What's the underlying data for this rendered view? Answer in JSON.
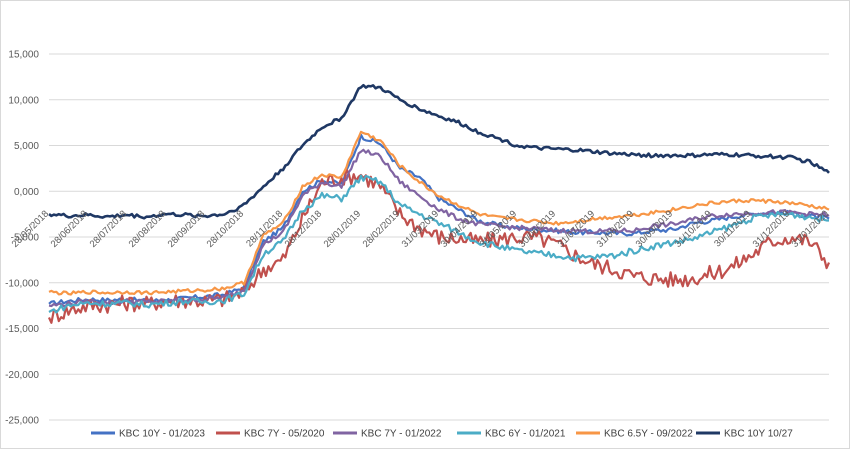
{
  "chart_data": {
    "type": "line",
    "title": "",
    "xlabel": "",
    "ylabel": "",
    "ylim": [
      -25,
      15
    ],
    "y_ticks": [
      15,
      10,
      5,
      0,
      -5,
      -10,
      -15,
      -20,
      -25
    ],
    "y_tick_labels": [
      "15,000",
      "10,000",
      "5,000",
      "0,000",
      "-5,000",
      "-10,000",
      "-15,000",
      "-20,000",
      "-25,000"
    ],
    "x_tick_labels": [
      "28/05/2018",
      "28/06/2018",
      "28/07/2018",
      "28/08/2018",
      "28/09/2018",
      "28/10/2018",
      "28/11/2018",
      "28/12/2018",
      "28/01/2019",
      "28/02/2019",
      "31/03/2019",
      "30/04/2019",
      "31/05/2019",
      "30/06/2019",
      "31/07/2019",
      "31/08/2019",
      "30/09/2019",
      "31/10/2019",
      "30/11/2019",
      "31/12/2019",
      "31/01/2020"
    ],
    "x_tick_positions": [
      0,
      1,
      2,
      3,
      4,
      5,
      6,
      7,
      8,
      9,
      10,
      11,
      12,
      13,
      14,
      15,
      16,
      17,
      18,
      19,
      20
    ],
    "x_range": [
      0,
      20
    ],
    "grid": "horizontal",
    "legend_position": "bottom",
    "series": [
      {
        "name": "KBC 10Y - 01/2023",
        "color": "#4472C4",
        "x": [
          0,
          0.5,
          1,
          1.5,
          2,
          2.5,
          3,
          3.5,
          4,
          4.5,
          5,
          5.5,
          6,
          6.5,
          7,
          7.5,
          8,
          8.5,
          9,
          9.5,
          10,
          10.5,
          11,
          11.5,
          12,
          12.5,
          13,
          13.5,
          14,
          14.5,
          15,
          15.5,
          16,
          16.5,
          17,
          17.5,
          18,
          18.5,
          19,
          19.5,
          20
        ],
        "values": [
          -12.3,
          -12.0,
          -11.8,
          -11.9,
          -11.8,
          -12.0,
          -11.9,
          -11.7,
          -11.5,
          -11.3,
          -10.5,
          -5.5,
          -4.0,
          0.0,
          1.2,
          0.8,
          6.0,
          5.2,
          2.5,
          1.5,
          -0.8,
          -2.0,
          -3.2,
          -3.7,
          -4.0,
          -4.2,
          -4.3,
          -4.5,
          -4.5,
          -4.6,
          -4.6,
          -4.3,
          -4.2,
          -3.5,
          -3.2,
          -2.8,
          -2.5,
          -2.3,
          -2.4,
          -2.7,
          -3.0
        ]
      },
      {
        "name": "KBC 7Y - 05/2020",
        "color": "#C0504D",
        "x": [
          0,
          0.5,
          1,
          1.5,
          2,
          2.5,
          3,
          3.5,
          4,
          4.5,
          5,
          5.5,
          6,
          6.5,
          7,
          7.5,
          8,
          8.5,
          9,
          9.5,
          10,
          10.5,
          11,
          11.5,
          12,
          12.5,
          13,
          13.5,
          14,
          14.5,
          15,
          15.5,
          16,
          16.5,
          17,
          17.5,
          18,
          18.5,
          19,
          19.5,
          20
        ],
        "values": [
          -13.8,
          -13.0,
          -12.5,
          -12.4,
          -12.2,
          -12.3,
          -12.0,
          -11.9,
          -12.0,
          -11.8,
          -11.0,
          -8.5,
          -7.5,
          -3.0,
          1.0,
          1.5,
          1.8,
          0.5,
          -2.5,
          -4.0,
          -5.0,
          -5.2,
          -5.5,
          -5.3,
          -5.0,
          -5.1,
          -5.8,
          -7.0,
          -8.0,
          -8.5,
          -9.3,
          -9.5,
          -9.7,
          -9.5,
          -9.0,
          -8.3,
          -7.0,
          -5.5,
          -5.0,
          -5.5,
          -7.8
        ]
      },
      {
        "name": "KBC 7Y - 01/2022",
        "color": "#8064A2",
        "x": [
          0,
          0.5,
          1,
          1.5,
          2,
          2.5,
          3,
          3.5,
          4,
          4.5,
          5,
          5.5,
          6,
          6.5,
          7,
          7.5,
          8,
          8.5,
          9,
          9.5,
          10,
          10.5,
          11,
          11.5,
          12,
          12.5,
          13,
          13.5,
          14,
          14.5,
          15,
          15.5,
          16,
          16.5,
          17,
          17.5,
          18,
          18.5,
          19,
          19.5,
          20
        ],
        "values": [
          -12.5,
          -12.3,
          -12.0,
          -12.2,
          -12.0,
          -12.1,
          -12.0,
          -11.9,
          -11.8,
          -11.6,
          -10.8,
          -5.8,
          -4.5,
          -0.5,
          1.0,
          0.5,
          4.5,
          3.8,
          1.0,
          -0.5,
          -2.0,
          -3.0,
          -3.6,
          -3.8,
          -4.0,
          -4.1,
          -4.3,
          -4.3,
          -4.4,
          -4.3,
          -4.3,
          -3.8,
          -3.6,
          -3.1,
          -2.7,
          -2.5,
          -2.4,
          -2.3,
          -2.3,
          -2.5,
          -2.6
        ]
      },
      {
        "name": "KBC 6Y - 01/2021",
        "color": "#4BACC6",
        "x": [
          0,
          0.5,
          1,
          1.5,
          2,
          2.5,
          3,
          3.5,
          4,
          4.5,
          5,
          5.5,
          6,
          6.5,
          7,
          7.5,
          8,
          8.5,
          9,
          9.5,
          10,
          10.5,
          11,
          11.5,
          12,
          12.5,
          13,
          13.5,
          14,
          14.5,
          15,
          15.5,
          16,
          16.5,
          17,
          17.5,
          18,
          18.5,
          19,
          19.5,
          20
        ],
        "values": [
          -13.2,
          -12.5,
          -12.2,
          -12.3,
          -12.2,
          -12.4,
          -12.2,
          -12.0,
          -12.1,
          -11.9,
          -11.2,
          -6.8,
          -5.5,
          -2.0,
          -0.5,
          -0.8,
          1.5,
          1.0,
          -1.5,
          -2.5,
          -3.5,
          -4.5,
          -5.5,
          -6.0,
          -6.5,
          -6.8,
          -7.0,
          -7.3,
          -7.2,
          -7.0,
          -6.5,
          -6.0,
          -5.6,
          -5.2,
          -4.5,
          -3.8,
          -3.0,
          -2.6,
          -2.5,
          -2.8,
          -3.2
        ]
      },
      {
        "name": "KBC 6.5Y - 09/2022",
        "color": "#F79646",
        "x": [
          0,
          0.5,
          1,
          1.5,
          2,
          2.5,
          3,
          3.5,
          4,
          4.5,
          5,
          5.5,
          6,
          6.5,
          7,
          7.5,
          8,
          8.5,
          9,
          9.5,
          10,
          10.5,
          11,
          11.5,
          12,
          12.5,
          13,
          13.5,
          14,
          14.5,
          15,
          15.5,
          16,
          16.5,
          17,
          17.5,
          18,
          18.5,
          19,
          19.5,
          20
        ],
        "values": [
          -11.0,
          -11.2,
          -11.0,
          -11.1,
          -11.0,
          -11.1,
          -11.0,
          -10.9,
          -10.8,
          -10.6,
          -10.0,
          -4.8,
          -3.5,
          0.5,
          1.8,
          1.5,
          6.5,
          5.5,
          2.8,
          1.0,
          -0.5,
          -1.5,
          -2.5,
          -2.9,
          -3.1,
          -3.3,
          -3.5,
          -3.3,
          -3.0,
          -2.8,
          -2.6,
          -2.3,
          -2.0,
          -1.6,
          -1.3,
          -1.1,
          -1.0,
          -1.1,
          -1.3,
          -1.6,
          -2.0
        ]
      },
      {
        "name": "KBC 10Y 10/27",
        "color": "#1F3864",
        "x": [
          0,
          0.5,
          1,
          1.5,
          2,
          2.5,
          3,
          3.5,
          4,
          4.5,
          5,
          5.5,
          6,
          6.5,
          7,
          7.5,
          8,
          8.5,
          9,
          9.5,
          10,
          10.5,
          11,
          11.5,
          12,
          12.5,
          13,
          13.5,
          14,
          14.5,
          15,
          15.5,
          16,
          16.5,
          17,
          17.5,
          18,
          18.5,
          19,
          19.5,
          20
        ],
        "values": [
          -2.5,
          -2.7,
          -2.6,
          -2.8,
          -2.6,
          -2.8,
          -2.5,
          -2.6,
          -2.7,
          -2.5,
          -1.5,
          0.5,
          2.5,
          5.0,
          7.0,
          8.0,
          11.5,
          11.3,
          10.0,
          9.0,
          8.2,
          7.5,
          6.5,
          5.8,
          5.0,
          4.7,
          4.6,
          4.5,
          4.3,
          4.1,
          4.0,
          3.9,
          3.9,
          3.9,
          4.0,
          4.0,
          3.9,
          3.8,
          3.7,
          3.2,
          2.0
        ]
      }
    ]
  }
}
